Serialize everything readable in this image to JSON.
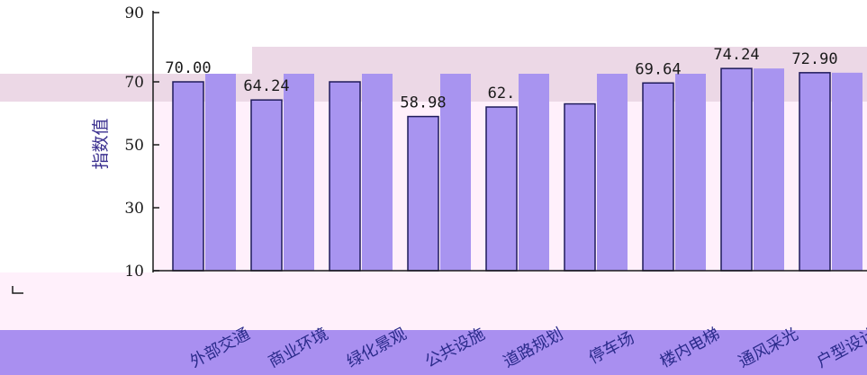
{
  "colors": {
    "background": "#ffffff",
    "plot_area": "#fff0fb",
    "band_top": "#ecd8e6",
    "band_bottom": "#a98ff0",
    "bar_fill": "#a894f0",
    "bar_stroke": "#1e1a5a",
    "category_text": "#2a2a8a"
  },
  "chart_data": {
    "type": "bar",
    "title": "",
    "xlabel": "",
    "ylabel": "指数值",
    "ylim": [
      10,
      90
    ],
    "yticks": [
      10,
      30,
      50,
      70,
      90
    ],
    "grid": false,
    "categories": [
      "外部交通",
      "商业环境",
      "绿化景观",
      "公共设施",
      "道路规划",
      "停车场",
      "楼内电梯",
      "通风采光",
      "户型设计"
    ],
    "categories_display": [
      "外部交通",
      "商业环境",
      "绿化景观",
      "公共设施",
      "道路规划",
      "停车场",
      "楼内电梯",
      "通风采光",
      "户型设计"
    ],
    "values": [
      70.0,
      64.24,
      70.0,
      58.98,
      62.0,
      63.0,
      69.64,
      74.24,
      72.9
    ],
    "value_labels": [
      "70.00",
      "64.24",
      "",
      "58.98",
      "62.",
      "",
      "69.64",
      "74.24",
      "72.90"
    ]
  }
}
